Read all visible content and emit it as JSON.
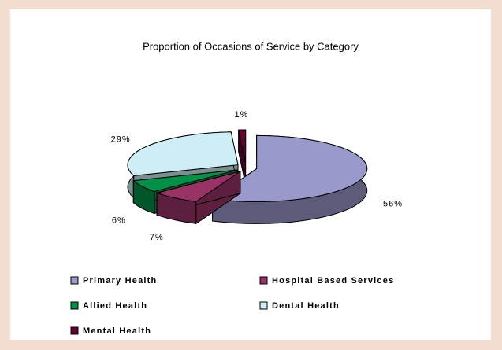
{
  "chart_data": {
    "type": "pie3d",
    "title": "Proportion of Occasions of Service by Category",
    "categories": [
      "Primary Health",
      "Hospital Based Services",
      "Allied Health",
      "Dental Health",
      "Mental Health"
    ],
    "values": [
      56,
      7,
      6,
      29,
      1
    ],
    "value_labels": [
      "56%",
      "7%",
      "6%",
      "29%",
      "1%"
    ],
    "colors": [
      "#9999cc",
      "#993366",
      "#009148",
      "#cdeef4",
      "#660033"
    ]
  }
}
